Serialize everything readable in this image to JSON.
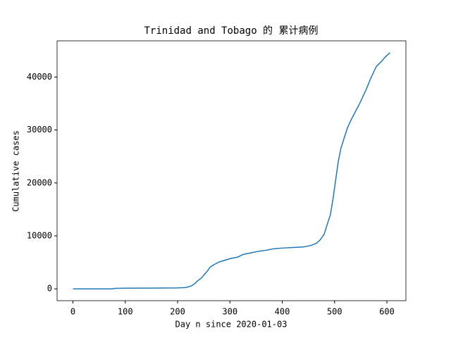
{
  "chart_data": {
    "type": "line",
    "title": "Trinidad and Tobago 的 累计病例",
    "x_label": "Day n since 2020-01-03",
    "y_label": "Cumulative cases",
    "x": [
      0,
      75,
      80,
      100,
      150,
      200,
      215,
      225,
      232,
      238,
      245,
      252,
      258,
      262,
      270,
      280,
      290,
      300,
      315,
      325,
      340,
      355,
      370,
      385,
      400,
      420,
      440,
      455,
      465,
      472,
      480,
      487,
      492,
      497,
      502,
      507,
      512,
      520,
      525,
      532,
      540,
      548,
      555,
      562,
      568,
      575,
      580,
      590,
      597,
      606
    ],
    "series": [
      {
        "color": "#1f77b4",
        "values": [
          0,
          0,
          100,
          130,
          140,
          180,
          250,
          500,
          900,
          1500,
          2000,
          2800,
          3500,
          4100,
          4600,
          5100,
          5400,
          5700,
          6000,
          6500,
          6800,
          7100,
          7300,
          7600,
          7700,
          7800,
          7900,
          8200,
          8600,
          9200,
          10300,
          12500,
          14000,
          17000,
          20500,
          24000,
          26500,
          29000,
          30500,
          32000,
          33500,
          35000,
          36500,
          38000,
          39500,
          41000,
          42000,
          43000,
          43800,
          44600
        ]
      }
    ],
    "xlim": [
      -30.3,
      636.3
    ],
    "ylim": [
      -2230,
      46830
    ],
    "xticks": [
      0,
      100,
      200,
      300,
      400,
      500,
      600
    ],
    "yticks": [
      0,
      10000,
      20000,
      30000,
      40000
    ]
  }
}
